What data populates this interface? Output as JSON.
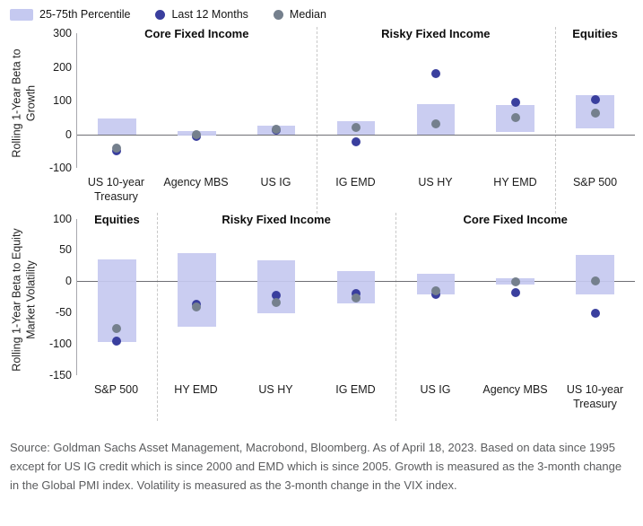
{
  "legend": {
    "percentile_label": "25-75th Percentile",
    "last12_label": "Last 12 Months",
    "median_label": "Median"
  },
  "colors": {
    "bar": "#c5c9f0",
    "last12_dot": "#3a3f9e",
    "median_dot": "#75808d",
    "zero_line": "#6f6f74",
    "axis_line": "#a8a8ad",
    "divider": "#c8c8c8"
  },
  "chart_data": [
    {
      "type": "bar",
      "title": "",
      "ylabel": "Rolling 1-Year Beta to Growth",
      "ylim": [
        -100,
        300
      ],
      "yticks": [
        300,
        200,
        100,
        0,
        -100
      ],
      "grid": false,
      "legend_position": "top-left",
      "sections": [
        {
          "label": "Core Fixed Income",
          "span": 3
        },
        {
          "label": "Risky Fixed Income",
          "span": 3
        },
        {
          "label": "Equities",
          "span": 1
        }
      ],
      "categories": [
        "US 10-year Treasury",
        "Agency MBS",
        "US IG",
        "IG EMD",
        "US HY",
        "HY EMD",
        "S&P 500"
      ],
      "series": [
        {
          "name": "25-75th Percentile",
          "type": "range",
          "low": [
            0,
            -4,
            0,
            0,
            0,
            6,
            18
          ],
          "high": [
            47,
            10,
            25,
            38,
            90,
            86,
            116
          ]
        },
        {
          "name": "Last 12 Months",
          "type": "dot",
          "values": [
            -50,
            -7,
            11,
            -22,
            180,
            96,
            102
          ]
        },
        {
          "name": "Median",
          "type": "dot",
          "values": [
            -40,
            0,
            14,
            20,
            31,
            50,
            62
          ]
        }
      ]
    },
    {
      "type": "bar",
      "title": "",
      "ylabel": "Rolling 1-Year Beta to Equity Market Volatility",
      "ylim": [
        -150,
        100
      ],
      "yticks": [
        100,
        50,
        0,
        -50,
        -100,
        -150
      ],
      "grid": false,
      "legend_position": "top-left",
      "sections": [
        {
          "label": "Equities",
          "span": 1
        },
        {
          "label": "Risky Fixed Income",
          "span": 3
        },
        {
          "label": "Core Fixed Income",
          "span": 3
        }
      ],
      "categories": [
        "S&P 500",
        "HY EMD",
        "US HY",
        "IG EMD",
        "US IG",
        "Agency MBS",
        "US 10-year Treasury"
      ],
      "series": [
        {
          "name": "25-75th Percentile",
          "type": "range",
          "low": [
            -97,
            -73,
            -52,
            -36,
            -22,
            -6,
            -22
          ],
          "high": [
            35,
            45,
            33,
            16,
            12,
            5,
            42
          ]
        },
        {
          "name": "Last 12 Months",
          "type": "dot",
          "values": [
            -96,
            -37,
            -23,
            -20,
            -22,
            -18,
            -52
          ]
        },
        {
          "name": "Median",
          "type": "dot",
          "values": [
            -76,
            -42,
            -35,
            -27,
            -16,
            -2,
            0
          ]
        }
      ]
    }
  ],
  "footer": {
    "source": "Source: Goldman Sachs Asset Management, Macrobond, Bloomberg. As of April 18, 2023. Based on data since 1995 except for US IG credit which is since 2000 and EMD which is since 2005. Growth is measured as the 3-month change in the Global PMI index. Volatility is measured as the 3-month change in the VIX index."
  }
}
